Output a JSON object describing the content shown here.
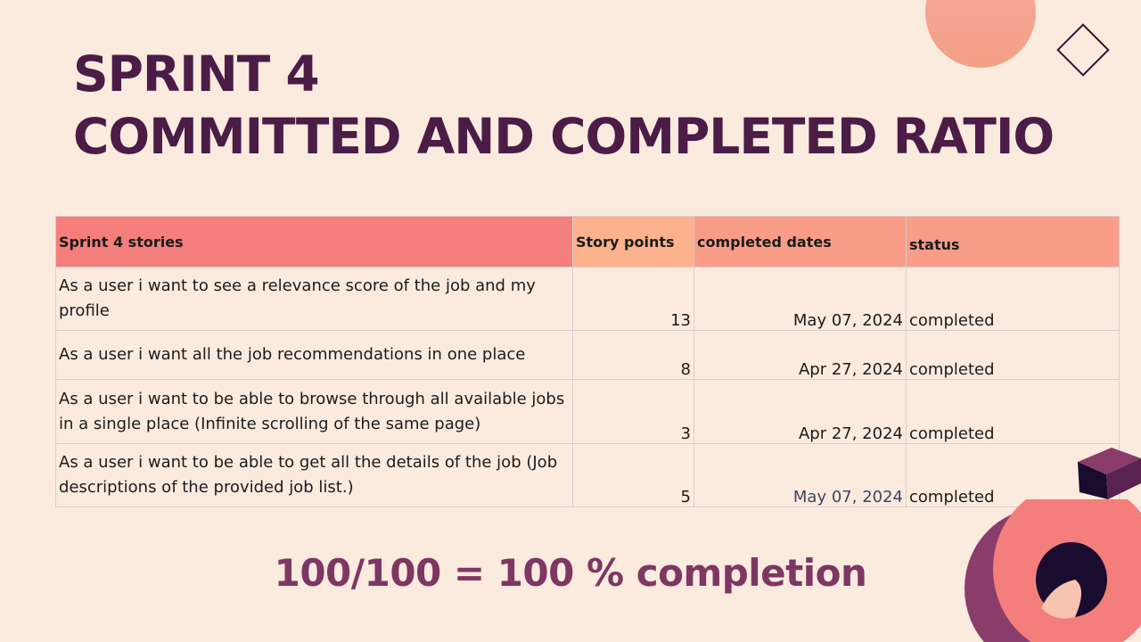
{
  "title": {
    "line1": "SPRINT 4",
    "line2": "COMMITTED AND COMPLETED RATIO"
  },
  "table": {
    "headers": {
      "story": "Sprint 4 stories",
      "points": "Story points",
      "dates": "completed dates",
      "status": "status"
    },
    "rows": [
      {
        "story": "As a user i want to see a relevance score of the job and my profile",
        "points": "13",
        "date": "May 07, 2024",
        "status": "completed"
      },
      {
        "story": "As a user i want all the job recommendations in one place",
        "points": "8",
        "date": "Apr 27, 2024",
        "status": "completed"
      },
      {
        "story": "As a user i want to be able to browse through all available jobs in a single place (Infinite scrolling of the same page)",
        "points": "3",
        "date": "Apr 27, 2024",
        "status": "completed"
      },
      {
        "story": "As a user i want to be able to get all the details of the job (Job descriptions of the provided job list.)",
        "points": "5",
        "date": "May 07, 2024",
        "status": "completed"
      }
    ]
  },
  "summary": "100/100 = 100 % completion",
  "colors": {
    "background": "#fbebdf",
    "title": "#4a1c46",
    "summary": "#7e3663",
    "header_story": "#f47e7b",
    "header_points": "#fbb28d",
    "header_dates": "#f99d88"
  }
}
